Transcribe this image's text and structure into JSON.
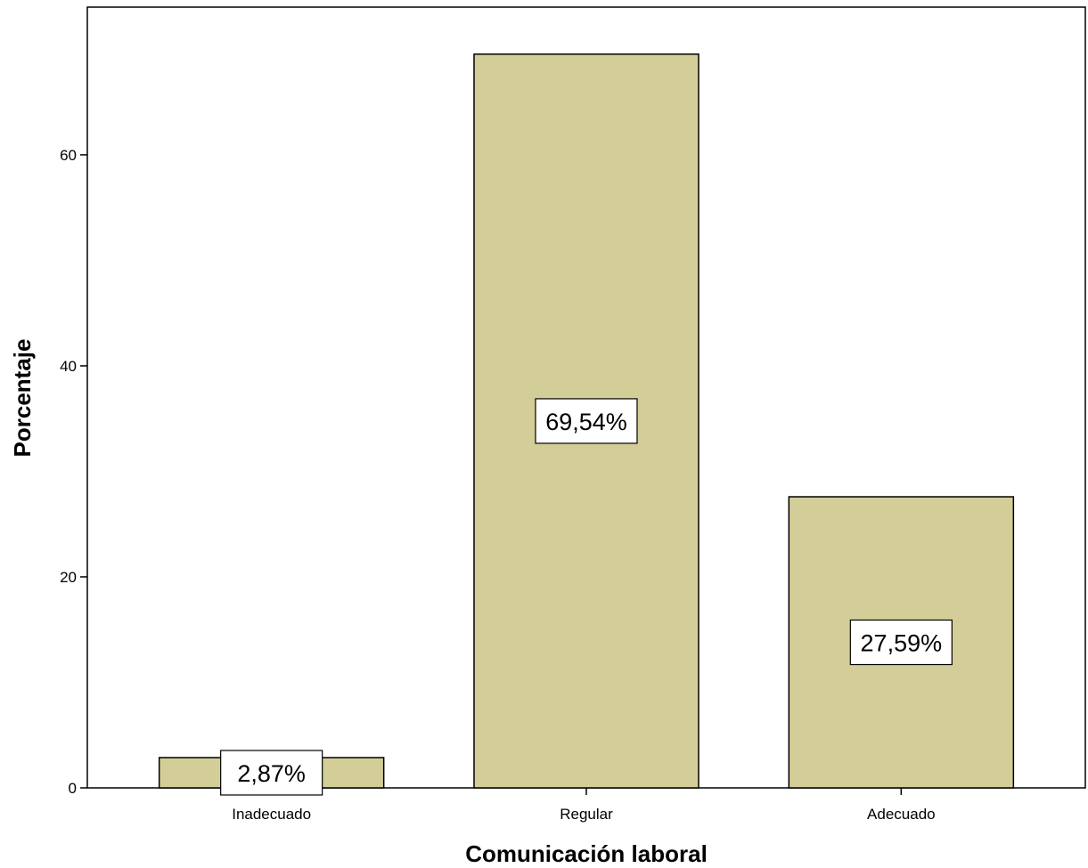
{
  "chart_data": {
    "type": "bar",
    "categories": [
      "Inadecuado",
      "Regular",
      "Adecuado"
    ],
    "values": [
      2.87,
      69.54,
      27.59
    ],
    "data_labels": [
      "2,87%",
      "69,54%",
      "27,59%"
    ],
    "xlabel": "Comunicación laboral",
    "ylabel": "Porcentaje",
    "ylim": [
      0,
      74
    ],
    "yticks": [
      0,
      20,
      40,
      60
    ],
    "ytick_labels": [
      "0",
      "20",
      "40",
      "60"
    ],
    "grid": false,
    "legend": "none",
    "bar_color": "#d3cd98",
    "bar_edge_color": "#000000",
    "label_box_color": "#ffffff"
  }
}
